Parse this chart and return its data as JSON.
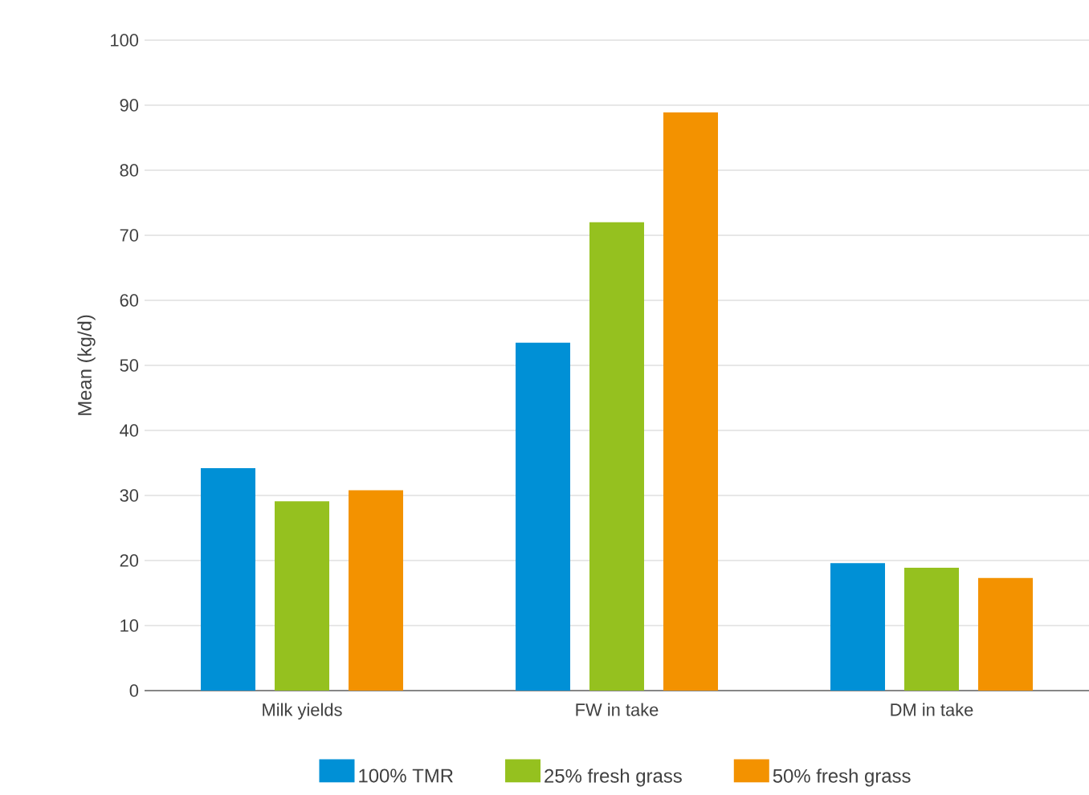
{
  "chart_data": {
    "type": "bar",
    "ylabel": "Mean (kg/d)",
    "categories": [
      "Milk yields",
      "FW in take",
      "DM in take"
    ],
    "series": [
      {
        "name": "100% TMR",
        "color": "#0090d6",
        "values": [
          34.2,
          53.5,
          19.6
        ]
      },
      {
        "name": "25% fresh grass",
        "color": "#95c11f",
        "values": [
          29.1,
          72.0,
          18.9
        ]
      },
      {
        "name": "50% fresh grass",
        "color": "#f39200",
        "values": [
          30.8,
          88.9,
          17.3
        ]
      }
    ],
    "ylim": [
      0,
      100
    ],
    "yticks": [
      0,
      10,
      20,
      30,
      40,
      50,
      60,
      70,
      80,
      90,
      100
    ],
    "grid": "y",
    "legend": "bottom"
  }
}
